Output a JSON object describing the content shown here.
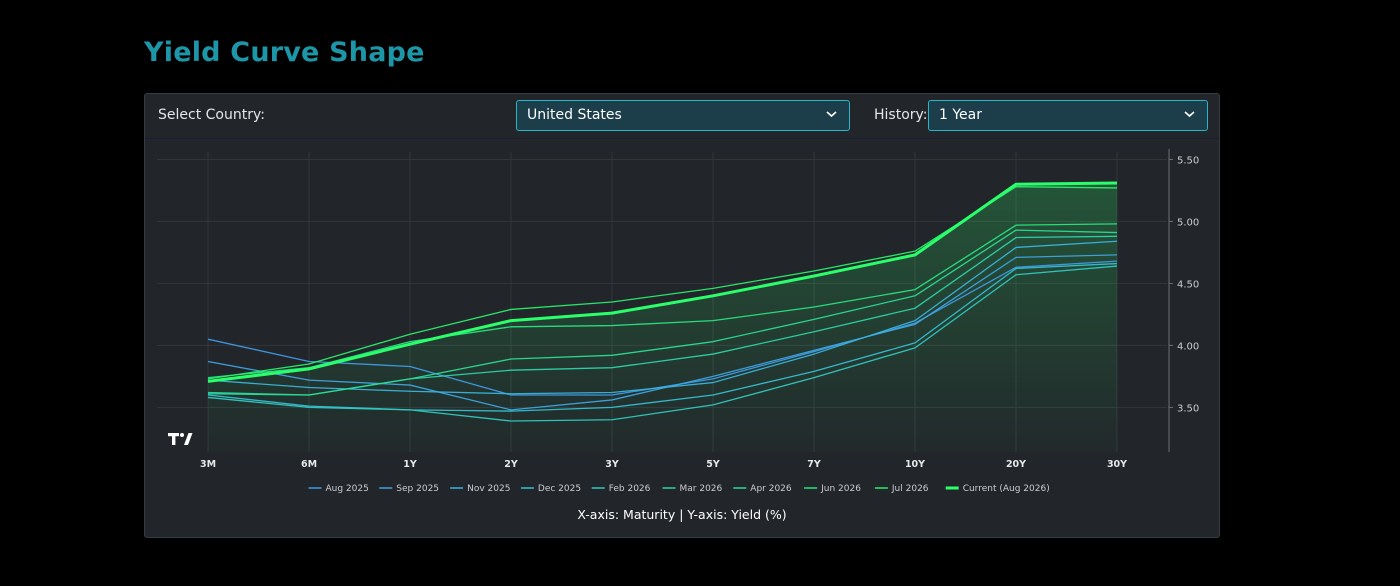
{
  "page": {
    "title": "Yield Curve Shape"
  },
  "controls": {
    "country_label": "Select Country:",
    "country_value": "United States",
    "history_label": "History:",
    "history_value": "1 Year"
  },
  "axis_note": "X-axis: Maturity | Y-axis: Yield (%)",
  "icons": {
    "watermark": "tradingview-logo-icon",
    "select_arrow": "chevron-down-icon"
  },
  "colors": {
    "title": "#1d97a8",
    "select_border": "#2bb5c9",
    "current": "#2aff6b"
  },
  "chart_data": {
    "type": "line",
    "categories": [
      "3M",
      "6M",
      "1Y",
      "2Y",
      "3Y",
      "5Y",
      "7Y",
      "10Y",
      "20Y",
      "30Y"
    ],
    "y_ticks": [
      "3.50",
      "4.00",
      "4.50",
      "5.00",
      "5.50"
    ],
    "ylim": [
      3.14,
      5.56
    ],
    "grid": true,
    "legend_position": "bottom",
    "series": [
      {
        "name": "Aug 2025",
        "color": "#3f9be6",
        "values": [
          4.05,
          3.87,
          3.83,
          3.6,
          3.6,
          3.73,
          3.95,
          4.18,
          4.63,
          4.68
        ]
      },
      {
        "name": "Sep 2025",
        "color": "#3ea5e0",
        "values": [
          3.87,
          3.72,
          3.68,
          3.48,
          3.56,
          3.75,
          3.96,
          4.17,
          4.71,
          4.73
        ]
      },
      {
        "name": "Nov 2025",
        "color": "#3ab4dc",
        "values": [
          3.72,
          3.66,
          3.63,
          3.61,
          3.62,
          3.7,
          3.93,
          4.2,
          4.79,
          4.84
        ]
      },
      {
        "name": "Dec 2025",
        "color": "#36c0d2",
        "values": [
          3.6,
          3.51,
          3.48,
          3.47,
          3.5,
          3.6,
          3.79,
          4.02,
          4.62,
          4.66
        ]
      },
      {
        "name": "Feb 2026",
        "color": "#32c9c0",
        "values": [
          3.58,
          3.5,
          3.48,
          3.39,
          3.4,
          3.52,
          3.74,
          3.98,
          4.57,
          4.64
        ]
      },
      {
        "name": "Mar 2026",
        "color": "#2ed3a8",
        "values": [
          3.62,
          3.6,
          3.73,
          3.8,
          3.82,
          3.93,
          4.11,
          4.3,
          4.87,
          4.88
        ]
      },
      {
        "name": "Apr 2026",
        "color": "#2bdc93",
        "values": [
          3.61,
          3.6,
          3.73,
          3.89,
          3.92,
          4.03,
          4.21,
          4.4,
          4.93,
          4.91
        ]
      },
      {
        "name": "Jun 2026",
        "color": "#29e57e",
        "values": [
          3.74,
          3.82,
          4.03,
          4.15,
          4.16,
          4.2,
          4.31,
          4.45,
          4.97,
          4.98
        ]
      },
      {
        "name": "Jul 2026",
        "color": "#28ef6c",
        "values": [
          3.73,
          3.85,
          4.09,
          4.29,
          4.35,
          4.46,
          4.6,
          4.76,
          5.28,
          5.27
        ]
      },
      {
        "name": "Current (Aug 2026)",
        "color": "#2aff6b",
        "values": [
          3.71,
          3.81,
          4.01,
          4.2,
          4.26,
          4.4,
          4.56,
          4.73,
          5.3,
          5.31
        ]
      }
    ]
  }
}
